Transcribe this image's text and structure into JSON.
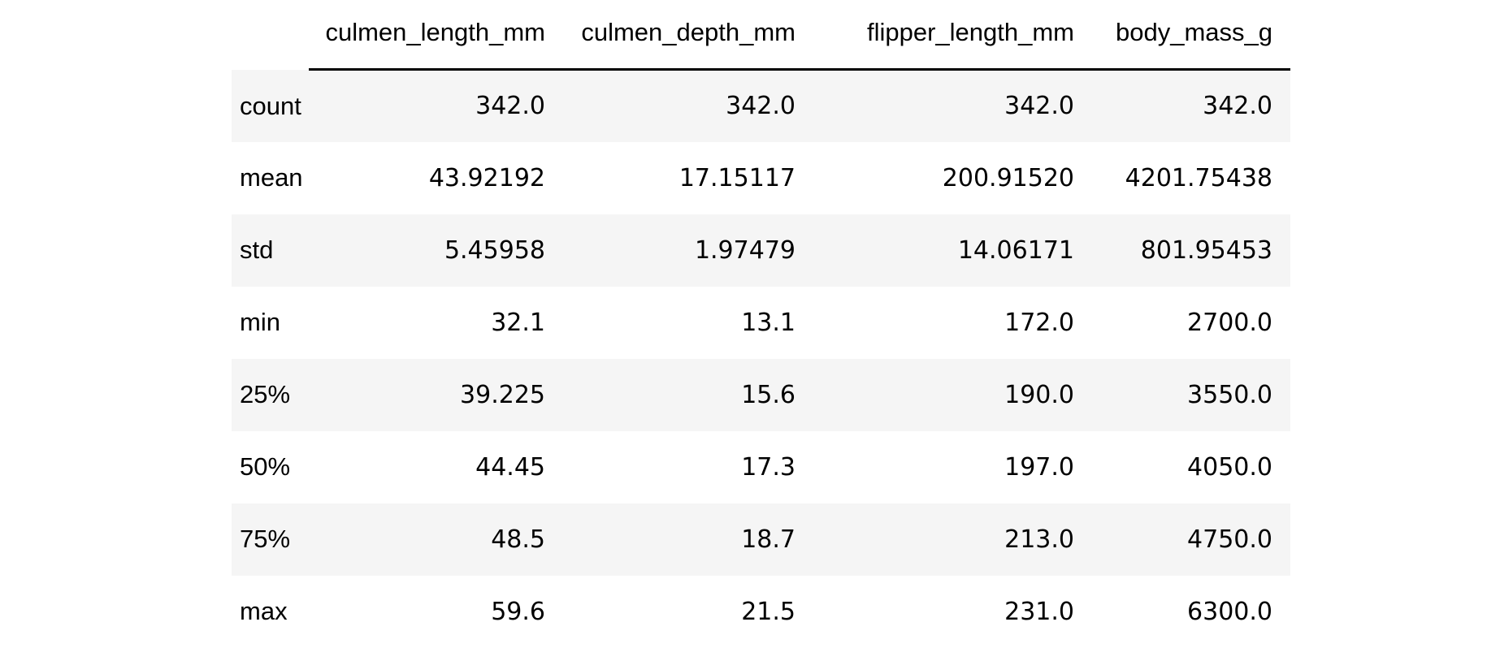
{
  "table": {
    "columns": [
      "culmen_length_mm",
      "culmen_depth_mm",
      "flipper_length_mm",
      "body_mass_g"
    ],
    "rows": [
      {
        "label": "count",
        "values": [
          "342.0",
          "342.0",
          "342.0",
          "342.0"
        ]
      },
      {
        "label": "mean",
        "values": [
          "43.92192",
          "17.15117",
          "200.91520",
          "4201.75438"
        ]
      },
      {
        "label": "std",
        "values": [
          "5.45958",
          "1.97479",
          "14.06171",
          "801.95453"
        ]
      },
      {
        "label": "min",
        "values": [
          "32.1",
          "13.1",
          "172.0",
          "2700.0"
        ]
      },
      {
        "label": "25%",
        "values": [
          "39.225",
          "15.6",
          "190.0",
          "3550.0"
        ]
      },
      {
        "label": "50%",
        "values": [
          "44.45",
          "17.3",
          "197.0",
          "4050.0"
        ]
      },
      {
        "label": "75%",
        "values": [
          "48.5",
          "18.7",
          "213.0",
          "4750.0"
        ]
      },
      {
        "label": "max",
        "values": [
          "59.6",
          "21.5",
          "231.0",
          "6300.0"
        ]
      }
    ]
  },
  "colors": {
    "stripe": "#f5f5f5",
    "header_rule": "#000000",
    "text": "#000000"
  }
}
